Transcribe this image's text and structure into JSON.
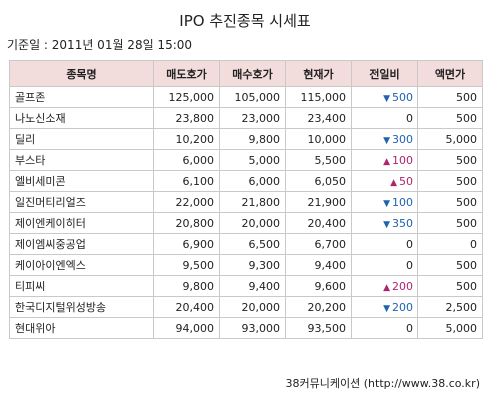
{
  "title": "IPO 추진종목 시세표",
  "base_date": "기준일 : 2011년 01월 28일 15:00",
  "columns": [
    "종목명",
    "매도호가",
    "매수호가",
    "현재가",
    "전일비",
    "액면가"
  ],
  "rows": [
    {
      "name": "골프존",
      "ask": "125,000",
      "bid": "105,000",
      "price": "115,000",
      "dir": "down",
      "change": "500",
      "par": "500"
    },
    {
      "name": "나노신소재",
      "ask": "23,800",
      "bid": "23,000",
      "price": "23,400",
      "dir": "none",
      "change": "0",
      "par": "500"
    },
    {
      "name": "딜리",
      "ask": "10,200",
      "bid": "9,800",
      "price": "10,000",
      "dir": "down",
      "change": "300",
      "par": "5,000"
    },
    {
      "name": "부스타",
      "ask": "6,000",
      "bid": "5,000",
      "price": "5,500",
      "dir": "up",
      "change": "100",
      "par": "500"
    },
    {
      "name": "엘비세미콘",
      "ask": "6,100",
      "bid": "6,000",
      "price": "6,050",
      "dir": "up",
      "change": "50",
      "par": "500"
    },
    {
      "name": "일진머티리얼즈",
      "ask": "22,000",
      "bid": "21,800",
      "price": "21,900",
      "dir": "down",
      "change": "100",
      "par": "500"
    },
    {
      "name": "제이엔케이히터",
      "ask": "20,800",
      "bid": "20,000",
      "price": "20,400",
      "dir": "down",
      "change": "350",
      "par": "500"
    },
    {
      "name": "제이엠씨중공업",
      "ask": "6,900",
      "bid": "6,500",
      "price": "6,700",
      "dir": "none",
      "change": "0",
      "par": "0"
    },
    {
      "name": "케이아이엔엑스",
      "ask": "9,500",
      "bid": "9,300",
      "price": "9,400",
      "dir": "none",
      "change": "0",
      "par": "500"
    },
    {
      "name": "티피씨",
      "ask": "9,800",
      "bid": "9,400",
      "price": "9,600",
      "dir": "up",
      "change": "200",
      "par": "500"
    },
    {
      "name": "한국디지털위성방송",
      "ask": "20,400",
      "bid": "20,000",
      "price": "20,200",
      "dir": "down",
      "change": "200",
      "par": "2,500"
    },
    {
      "name": "현대위아",
      "ask": "94,000",
      "bid": "93,000",
      "price": "93,500",
      "dir": "none",
      "change": "0",
      "par": "5,000"
    }
  ],
  "colors": {
    "header_bg": "#f3dcdc",
    "down": "#1f62b0",
    "up": "#b0246e",
    "border": "#c9c9c9"
  },
  "icons": {
    "up": "triangle-up-icon",
    "down": "triangle-down-icon"
  },
  "footer": "38커뮤니케이션 (http://www.38.co.kr)"
}
